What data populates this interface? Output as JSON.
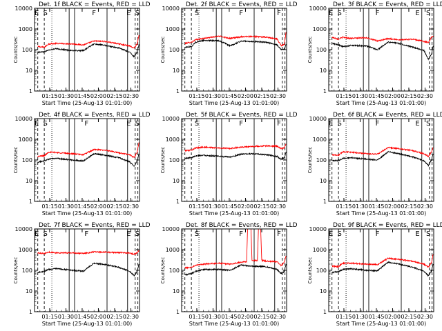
{
  "figure": {
    "x_label": "Start Time (25-Aug-13 01:01:00)",
    "y_label": "Counts/sec",
    "x_ticks": [
      "01:15",
      "01:30",
      "01:45",
      "02:00",
      "02:15",
      "02:30"
    ],
    "y_ticks": [
      "1",
      "10",
      "100",
      "1000",
      "10000"
    ],
    "colors": {
      "events": "#000000",
      "lld": "#ff0000",
      "axis": "#000000",
      "background": "#ffffff"
    }
  },
  "chart_data": [
    {
      "type": "line",
      "title": "Det. 1f BLACK = Events, RED = LLD",
      "xlabel": "Start Time (25-Aug-13 01:01:00)",
      "ylabel": "Counts/sec",
      "y_scale": "log",
      "ylim": [
        1,
        10000
      ],
      "xlim_minutes_after_start": [
        0,
        97
      ],
      "markers": [
        {
          "letter": "E",
          "label_minute": 2
        },
        {
          "letter": "S",
          "label_minute": 10
        },
        {
          "letter": "F",
          "label_minute": 55
        },
        {
          "letter": "E",
          "label_minute": 87
        },
        {
          "letter": "S",
          "label_minute": 95
        }
      ],
      "series": [
        {
          "x": [
            3,
            9,
            13,
            20,
            35,
            45,
            55,
            65,
            78,
            88,
            92,
            95,
            96.5
          ],
          "values": [
            140,
            130,
            190,
            200,
            190,
            170,
            260,
            250,
            190,
            150,
            120,
            200,
            500
          ]
        },
        {
          "x": [
            3,
            9,
            13,
            20,
            35,
            45,
            55,
            65,
            78,
            88,
            92,
            95,
            96.5
          ],
          "values": [
            75,
            80,
            95,
            110,
            90,
            90,
            190,
            160,
            120,
            75,
            45,
            80,
            180
          ]
        }
      ]
    },
    {
      "type": "line",
      "title": "Det. 2f BLACK = Events, RED = LLD",
      "xlabel": "Start Time (25-Aug-13 01:01:00)",
      "ylabel": "Counts/sec",
      "y_scale": "log",
      "ylim": [
        1,
        10000
      ],
      "xlim_minutes_after_start": [
        0,
        97
      ],
      "markers": [
        {
          "letter": "S",
          "label_minute": 14
        },
        {
          "letter": "F",
          "label_minute": 55
        },
        {
          "letter": "F",
          "label_minute": 90
        }
      ],
      "series": [
        {
          "x": [
            3,
            9,
            13,
            20,
            35,
            45,
            55,
            65,
            78,
            88,
            92,
            95,
            96.5
          ],
          "values": [
            200,
            230,
            300,
            350,
            450,
            350,
            420,
            440,
            400,
            330,
            160,
            180,
            700
          ]
        },
        {
          "x": [
            3,
            9,
            13,
            20,
            35,
            45,
            55,
            65,
            78,
            88,
            92,
            95,
            96.5
          ],
          "values": [
            130,
            140,
            230,
            280,
            270,
            150,
            260,
            250,
            230,
            170,
            100,
            110,
            180
          ]
        }
      ]
    },
    {
      "type": "line",
      "title": "Det. 3f BLACK = Events, RED = LLD",
      "xlabel": "Start Time (25-Aug-13 01:01:00)",
      "ylabel": "Counts/sec",
      "y_scale": "log",
      "ylim": [
        1,
        10000
      ],
      "xlim_minutes_after_start": [
        0,
        97
      ],
      "markers": [
        {
          "letter": "E",
          "label_minute": 2
        },
        {
          "letter": "S",
          "label_minute": 10
        },
        {
          "letter": "F",
          "label_minute": 45
        },
        {
          "letter": "E",
          "label_minute": 82
        },
        {
          "letter": "S",
          "label_minute": 92
        }
      ],
      "series": [
        {
          "x": [
            3,
            9,
            13,
            20,
            35,
            45,
            55,
            65,
            78,
            88,
            92,
            95,
            96.5
          ],
          "values": [
            400,
            320,
            400,
            350,
            380,
            260,
            340,
            300,
            320,
            250,
            220,
            400,
            450
          ]
        },
        {
          "x": [
            3,
            9,
            13,
            20,
            35,
            45,
            55,
            65,
            78,
            88,
            92,
            95,
            96.5
          ],
          "values": [
            200,
            170,
            140,
            160,
            150,
            100,
            230,
            200,
            130,
            90,
            35,
            60,
            150
          ]
        }
      ]
    },
    {
      "type": "line",
      "title": "Det. 4f BLACK = Events, RED = LLD",
      "xlabel": "Start Time (25-Aug-13 01:01:00)",
      "ylabel": "Counts/sec",
      "y_scale": "log",
      "ylim": [
        1,
        10000
      ],
      "xlim_minutes_after_start": [
        0,
        97
      ],
      "markers": [
        {
          "letter": "E",
          "label_minute": 2
        },
        {
          "letter": "S",
          "label_minute": 10
        },
        {
          "letter": "F",
          "label_minute": 48
        },
        {
          "letter": "E",
          "label_minute": 87
        },
        {
          "letter": "S",
          "label_minute": 95
        }
      ],
      "series": [
        {
          "x": [
            3,
            9,
            13,
            20,
            35,
            45,
            55,
            65,
            78,
            88,
            92,
            95,
            96.5
          ],
          "values": [
            150,
            160,
            240,
            230,
            200,
            180,
            320,
            300,
            220,
            180,
            130,
            250,
            700
          ]
        },
        {
          "x": [
            3,
            9,
            13,
            20,
            35,
            45,
            55,
            65,
            78,
            88,
            92,
            95,
            96.5
          ],
          "values": [
            80,
            90,
            110,
            120,
            100,
            90,
            200,
            170,
            130,
            80,
            50,
            90,
            200
          ]
        }
      ]
    },
    {
      "type": "line",
      "title": "Det. 5f BLACK = Events, RED = LLD",
      "xlabel": "Start Time (25-Aug-13 01:01:00)",
      "ylabel": "Counts/sec",
      "y_scale": "log",
      "ylim": [
        1,
        10000
      ],
      "xlim_minutes_after_start": [
        0,
        97
      ],
      "markers": [
        {
          "letter": "S",
          "label_minute": 14
        },
        {
          "letter": "F",
          "label_minute": 55
        },
        {
          "letter": "F",
          "label_minute": 90
        }
      ],
      "series": [
        {
          "x": [
            3,
            9,
            13,
            20,
            35,
            45,
            55,
            65,
            78,
            88,
            92,
            95,
            96.5
          ],
          "values": [
            280,
            300,
            380,
            420,
            380,
            360,
            420,
            450,
            480,
            470,
            350,
            400,
            600
          ]
        },
        {
          "x": [
            3,
            9,
            13,
            20,
            35,
            45,
            55,
            65,
            78,
            88,
            92,
            95,
            96.5
          ],
          "values": [
            120,
            130,
            160,
            170,
            150,
            140,
            190,
            200,
            180,
            150,
            110,
            130,
            250
          ]
        }
      ]
    },
    {
      "type": "line",
      "title": "Det. 6f BLACK = Events, RED = LLD",
      "xlabel": "Start Time (25-Aug-13 01:01:00)",
      "ylabel": "Counts/sec",
      "y_scale": "log",
      "ylim": [
        1,
        10000
      ],
      "xlim_minutes_after_start": [
        0,
        97
      ],
      "markers": [
        {
          "letter": "E",
          "label_minute": 2
        },
        {
          "letter": "S",
          "label_minute": 10
        },
        {
          "letter": "F",
          "label_minute": 45
        },
        {
          "letter": "E",
          "label_minute": 82
        },
        {
          "letter": "S",
          "label_minute": 92
        }
      ],
      "series": [
        {
          "x": [
            3,
            9,
            13,
            20,
            35,
            45,
            55,
            65,
            78,
            88,
            92,
            95,
            96.5
          ],
          "values": [
            180,
            170,
            250,
            240,
            200,
            190,
            400,
            350,
            280,
            200,
            150,
            250,
            400
          ]
        },
        {
          "x": [
            3,
            9,
            13,
            20,
            35,
            45,
            55,
            65,
            78,
            88,
            92,
            95,
            96.5
          ],
          "values": [
            90,
            95,
            120,
            130,
            110,
            100,
            250,
            200,
            140,
            90,
            55,
            100,
            200
          ]
        }
      ]
    },
    {
      "type": "line",
      "title": "Det. 7f BLACK = Events, RED = LLD",
      "xlabel": "Start Time (25-Aug-13 01:01:00)",
      "ylabel": "Counts/sec",
      "y_scale": "log",
      "ylim": [
        1,
        10000
      ],
      "xlim_minutes_after_start": [
        0,
        97
      ],
      "markers": [
        {
          "letter": "E",
          "label_minute": 2
        },
        {
          "letter": "S",
          "label_minute": 10
        },
        {
          "letter": "F",
          "label_minute": 48
        },
        {
          "letter": "E",
          "label_minute": 87
        },
        {
          "letter": "S",
          "label_minute": 95
        }
      ],
      "series": [
        {
          "x": [
            3,
            9,
            13,
            20,
            35,
            45,
            55,
            65,
            78,
            88,
            92,
            95,
            96.5
          ],
          "values": [
            700,
            650,
            750,
            700,
            700,
            650,
            780,
            760,
            720,
            680,
            600,
            700,
            900
          ]
        },
        {
          "x": [
            3,
            9,
            13,
            20,
            35,
            45,
            55,
            65,
            78,
            88,
            92,
            95,
            96.5
          ],
          "values": [
            80,
            90,
            110,
            120,
            100,
            90,
            220,
            190,
            140,
            90,
            55,
            90,
            200
          ]
        }
      ]
    },
    {
      "type": "line",
      "title": "Det. 8f BLACK = Events, RED = LLD",
      "xlabel": "Start Time (25-Aug-13 01:01:00)",
      "ylabel": "Counts/sec",
      "y_scale": "log",
      "ylim": [
        1,
        10000
      ],
      "xlim_minutes_after_start": [
        0,
        97
      ],
      "markers": [
        {
          "letter": "S",
          "label_minute": 14
        },
        {
          "letter": "F",
          "label_minute": 55
        },
        {
          "letter": "F",
          "label_minute": 90
        }
      ],
      "series": [
        {
          "x": [
            3,
            9,
            13,
            20,
            35,
            45,
            55,
            60,
            61,
            64,
            65,
            70,
            71,
            73,
            74,
            78,
            88,
            92,
            95,
            96.5
          ],
          "values": [
            130,
            140,
            180,
            200,
            220,
            200,
            250,
            260,
            12000,
            12000,
            300,
            300,
            12000,
            12000,
            300,
            280,
            260,
            170,
            250,
            500
          ]
        },
        {
          "x": [
            3,
            9,
            13,
            20,
            35,
            45,
            55,
            65,
            78,
            88,
            92,
            95,
            96.5
          ],
          "values": [
            60,
            70,
            90,
            110,
            110,
            100,
            180,
            160,
            150,
            110,
            70,
            90,
            200
          ]
        }
      ]
    },
    {
      "type": "line",
      "title": "Det. 9f BLACK = Events, RED = LLD",
      "xlabel": "Start Time (25-Aug-13 01:01:00)",
      "ylabel": "Counts/sec",
      "y_scale": "log",
      "ylim": [
        1,
        10000
      ],
      "xlim_minutes_after_start": [
        0,
        97
      ],
      "markers": [
        {
          "letter": "E",
          "label_minute": 2
        },
        {
          "letter": "S",
          "label_minute": 10
        },
        {
          "letter": "F",
          "label_minute": 45
        },
        {
          "letter": "E",
          "label_minute": 82
        },
        {
          "letter": "S",
          "label_minute": 92
        }
      ],
      "series": [
        {
          "x": [
            3,
            9,
            13,
            20,
            35,
            45,
            55,
            65,
            78,
            88,
            92,
            95,
            96.5
          ],
          "values": [
            160,
            150,
            220,
            220,
            200,
            190,
            380,
            340,
            270,
            200,
            140,
            240,
            600
          ]
        },
        {
          "x": [
            3,
            9,
            13,
            20,
            35,
            45,
            55,
            65,
            78,
            88,
            92,
            95,
            96.5
          ],
          "values": [
            80,
            85,
            110,
            120,
            100,
            95,
            250,
            200,
            140,
            90,
            55,
            95,
            200
          ]
        }
      ]
    }
  ]
}
